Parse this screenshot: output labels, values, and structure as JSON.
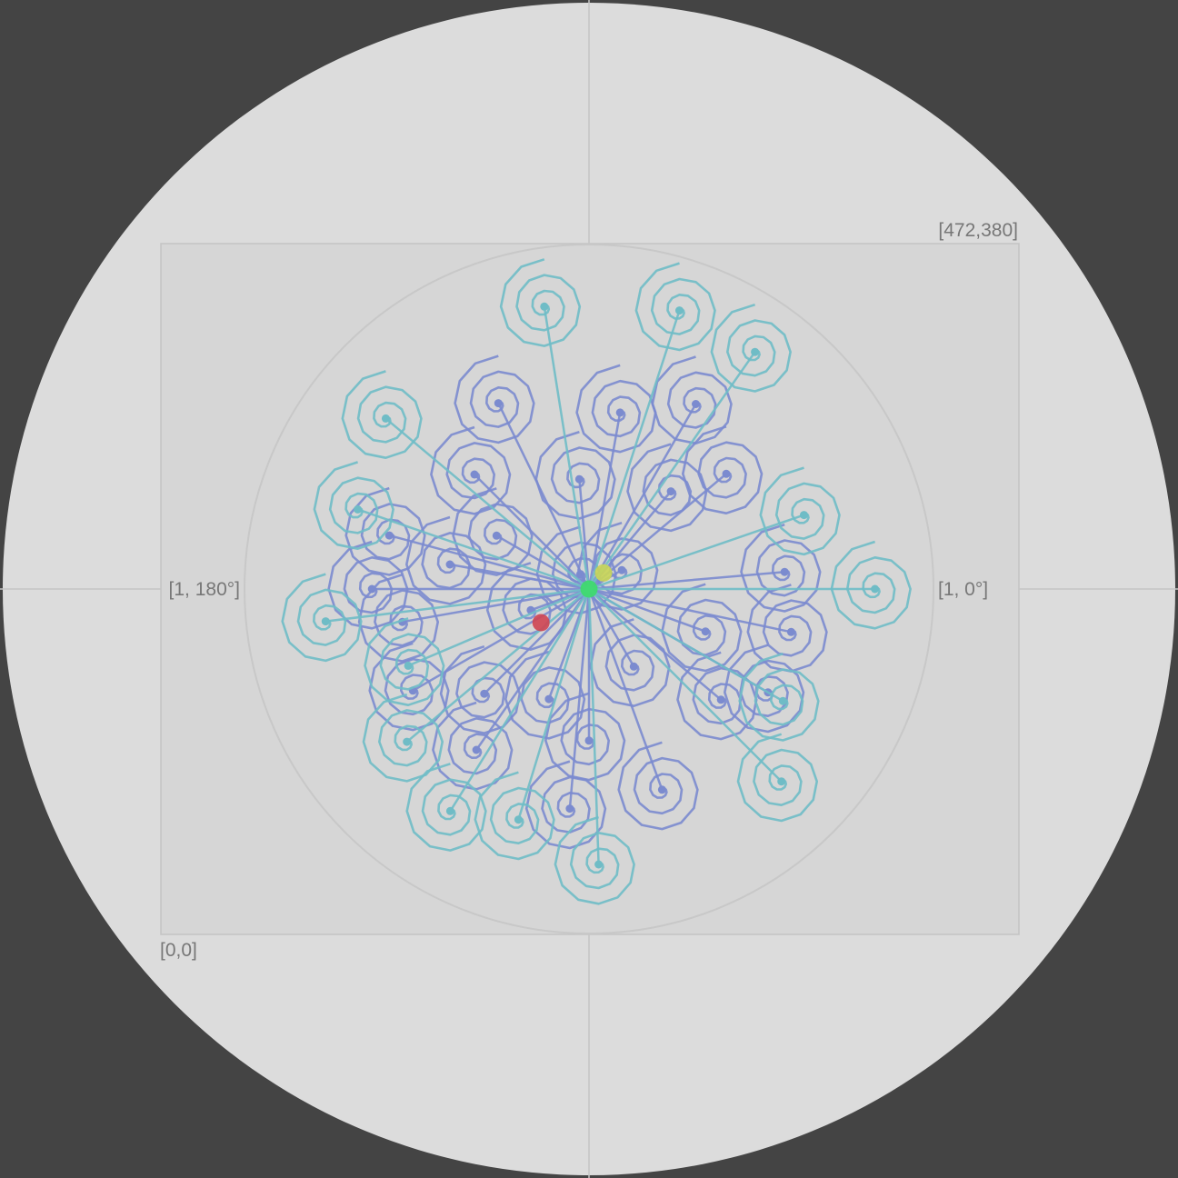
{
  "colors": {
    "background": "#444444",
    "disc": "#dcdcdc",
    "box": "#d6d6d6",
    "axis": "#c4c4c4",
    "ring": "#c8c8c8",
    "label": "#777777",
    "spiral_inner": "#7b8bcf",
    "spiral_outer": "#6fbcc6",
    "dot_center": "#3ddc6a",
    "dot_yellow": "#c9d656",
    "dot_red": "#cf4552"
  },
  "labels": {
    "top_right_corner": "[472,380]",
    "bottom_left_corner": "[0,0]",
    "polar_left": "[1, 180°]",
    "polar_right": "[1, 0°]"
  },
  "chart_data": {
    "type": "scatter",
    "spiral_turns": 3,
    "spiral_segments_per_turn": 12,
    "inner_spirals": [
      {
        "r": 0.05,
        "theta": 120
      },
      {
        "r": 0.11,
        "theta": 30
      },
      {
        "r": 0.18,
        "theta": 200
      },
      {
        "r": 0.26,
        "theta": 300
      },
      {
        "r": 0.32,
        "theta": 95
      },
      {
        "r": 0.31,
        "theta": 150
      },
      {
        "r": 0.34,
        "theta": 250
      },
      {
        "r": 0.36,
        "theta": 340
      },
      {
        "r": 0.37,
        "theta": 50
      },
      {
        "r": 0.41,
        "theta": 170
      },
      {
        "r": 0.44,
        "theta": 270
      },
      {
        "r": 0.43,
        "theta": 225
      },
      {
        "r": 0.47,
        "theta": 135
      },
      {
        "r": 0.52,
        "theta": 80
      },
      {
        "r": 0.52,
        "theta": 40
      },
      {
        "r": 0.5,
        "theta": 320
      },
      {
        "r": 0.55,
        "theta": 190
      },
      {
        "r": 0.57,
        "theta": 235
      },
      {
        "r": 0.57,
        "theta": 5
      },
      {
        "r": 0.6,
        "theta": 116
      },
      {
        "r": 0.6,
        "theta": 165
      },
      {
        "r": 0.62,
        "theta": 290
      },
      {
        "r": 0.6,
        "theta": 330
      },
      {
        "r": 0.62,
        "theta": 60
      },
      {
        "r": 0.63,
        "theta": 180
      },
      {
        "r": 0.59,
        "theta": 210
      },
      {
        "r": 0.6,
        "theta": 348
      },
      {
        "r": 0.64,
        "theta": 265
      }
    ],
    "outer_spirals": [
      {
        "r": 0.83,
        "theta": 99
      },
      {
        "r": 0.85,
        "theta": 72
      },
      {
        "r": 0.84,
        "theta": 55
      },
      {
        "r": 0.66,
        "theta": 19
      },
      {
        "r": 0.83,
        "theta": 0
      },
      {
        "r": 0.65,
        "theta": 330
      },
      {
        "r": 0.7,
        "theta": 253
      },
      {
        "r": 0.69,
        "theta": 220
      },
      {
        "r": 0.77,
        "theta": 187
      },
      {
        "r": 0.71,
        "theta": 161
      },
      {
        "r": 0.77,
        "theta": 140
      },
      {
        "r": 0.79,
        "theta": 315
      },
      {
        "r": 0.8,
        "theta": 272
      },
      {
        "r": 0.57,
        "theta": 203
      },
      {
        "r": 0.76,
        "theta": 238
      }
    ],
    "points": [
      {
        "name": "center",
        "r": 0.0,
        "theta": 0
      },
      {
        "name": "yellow",
        "r": 0.063,
        "theta": 48
      },
      {
        "name": "red",
        "r": 0.17,
        "theta": 215
      }
    ]
  }
}
